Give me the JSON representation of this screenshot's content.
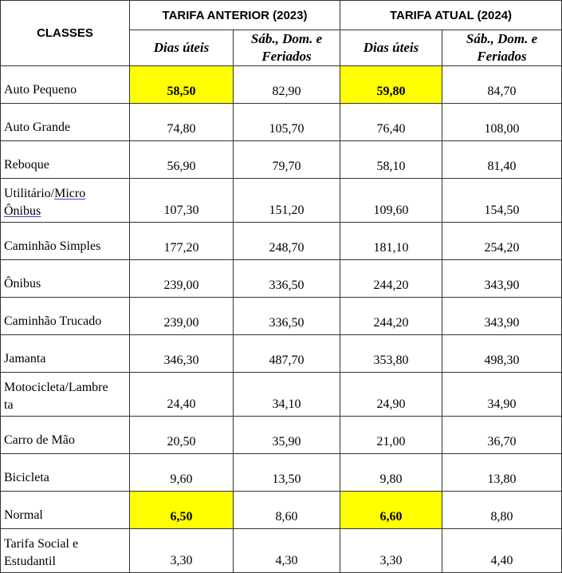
{
  "table": {
    "classes_header": "CLASSES",
    "group_headers": [
      "TARIFA ANTERIOR (2023)",
      "TARIFA ATUAL (2024)"
    ],
    "sub_headers": {
      "weekday_line1": "Dias úteis",
      "weekend_line1": "Sáb., Dom. e",
      "weekend_line2": "Feriados"
    },
    "highlight_color": "#ffff00",
    "rows": [
      {
        "class_line1": "Auto Pequeno",
        "class_line2": "",
        "v2023_weekday": "58,50",
        "v2023_weekend": "82,90",
        "v2024_weekday": "59,80",
        "v2024_weekend": "84,70"
      },
      {
        "class_line1": "Auto Grande",
        "class_line2": "",
        "v2023_weekday": "74,80",
        "v2023_weekend": "105,70",
        "v2024_weekday": "76,40",
        "v2024_weekend": "108,00"
      },
      {
        "class_line1": "Reboque",
        "class_line2": "",
        "v2023_weekday": "56,90",
        "v2023_weekend": "79,70",
        "v2024_weekday": "58,10",
        "v2024_weekend": "81,40"
      },
      {
        "class_line1": "Utilitário/",
        "class_line1b": "Micro",
        "class_line2": "Ônibus",
        "v2023_weekday": "107,30",
        "v2023_weekend": "151,20",
        "v2024_weekday": "109,60",
        "v2024_weekend": "154,50"
      },
      {
        "class_line1": "Caminhão Simples",
        "class_line2": "",
        "v2023_weekday": "177,20",
        "v2023_weekend": "248,70",
        "v2024_weekday": "181,10",
        "v2024_weekend": "254,20"
      },
      {
        "class_line1": "Ônibus",
        "class_line2": "",
        "v2023_weekday": "239,00",
        "v2023_weekend": "336,50",
        "v2024_weekday": "244,20",
        "v2024_weekend": "343,90"
      },
      {
        "class_line1": "Caminhão Trucado",
        "class_line2": "",
        "v2023_weekday": "239,00",
        "v2023_weekend": "336,50",
        "v2024_weekday": "244,20",
        "v2024_weekend": "343,90"
      },
      {
        "class_line1": "Jamanta",
        "class_line2": "",
        "v2023_weekday": "346,30",
        "v2023_weekend": "487,70",
        "v2024_weekday": "353,80",
        "v2024_weekend": "498,30"
      },
      {
        "class_line1": "Motocicleta/Lambre",
        "class_line2": "ta",
        "v2023_weekday": "24,40",
        "v2023_weekend": "34,10",
        "v2024_weekday": "24,90",
        "v2024_weekend": "34,90"
      },
      {
        "class_line1": "Carro de Mão",
        "class_line2": "",
        "v2023_weekday": "20,50",
        "v2023_weekend": "35,90",
        "v2024_weekday": "21,00",
        "v2024_weekend": "36,70"
      },
      {
        "class_line1": "Bicicleta",
        "class_line2": "",
        "v2023_weekday": "9,60",
        "v2023_weekend": "13,50",
        "v2024_weekday": "9,80",
        "v2024_weekend": "13,80"
      },
      {
        "class_line1": "Normal",
        "class_line2": "",
        "v2023_weekday": "6,50",
        "v2023_weekend": "8,60",
        "v2024_weekday": "6,60",
        "v2024_weekend": "8,80"
      },
      {
        "class_line1": "Tarifa Social e",
        "class_line2": "Estudantil",
        "v2023_weekday": "3,30",
        "v2023_weekend": "4,30",
        "v2024_weekday": "3,30",
        "v2024_weekend": "4,40"
      }
    ]
  }
}
